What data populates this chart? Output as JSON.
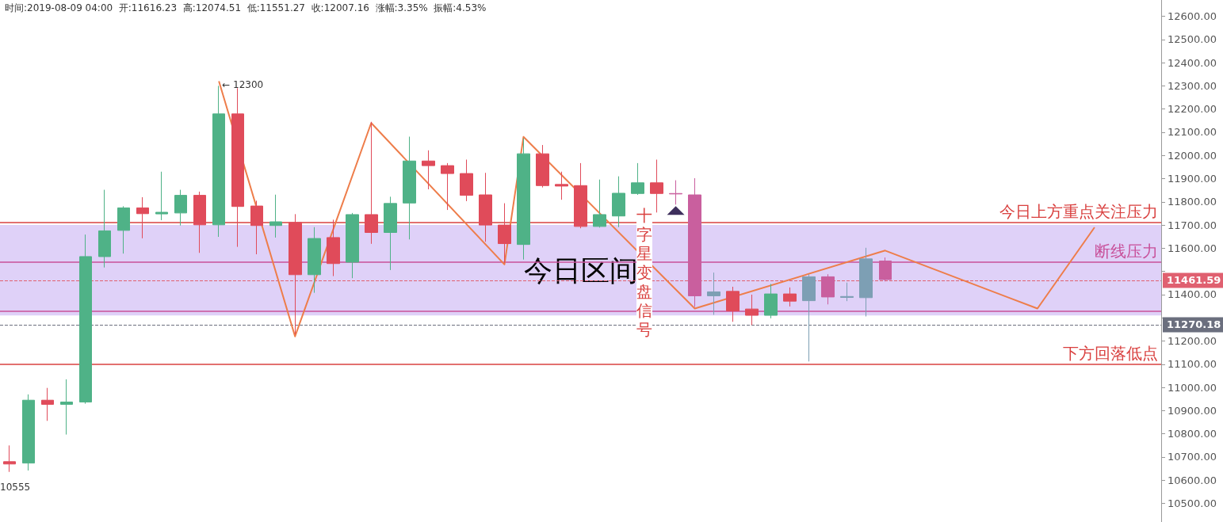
{
  "chart_data": {
    "type": "candlestick",
    "categories": [
      null,
      null,
      null,
      null,
      null,
      null,
      null,
      null,
      null,
      null,
      null,
      null,
      null,
      null,
      null,
      null,
      null,
      null,
      null,
      null,
      null,
      null,
      null,
      null,
      null,
      null,
      null,
      null,
      null,
      null,
      null,
      null,
      null,
      null,
      null,
      null,
      null,
      null,
      null,
      null,
      null,
      null,
      null,
      null,
      null,
      null,
      null,
      null,
      null,
      null,
      null,
      null,
      null,
      null,
      null,
      null,
      null,
      null,
      null,
      null,
      null
    ],
    "ohlc": [
      [
        10680,
        10750,
        10636,
        10670
      ],
      [
        10674,
        10970,
        10642,
        10945
      ],
      [
        10945,
        10998,
        10856,
        10927
      ],
      [
        10927,
        11035,
        10797,
        10937
      ],
      [
        10937,
        11659,
        10930,
        11564
      ],
      [
        11564,
        11852,
        11517,
        11675
      ],
      [
        11677,
        11781,
        11577,
        11774
      ],
      [
        11774,
        11820,
        11643,
        11749
      ],
      [
        11748,
        11930,
        11721,
        11755
      ],
      [
        11752,
        11852,
        11698,
        11828
      ],
      [
        11828,
        11844,
        11580,
        11701
      ],
      [
        11701,
        12300,
        11649,
        12179
      ],
      [
        12179,
        12290,
        11606,
        11780
      ],
      [
        11782,
        11805,
        11574,
        11698
      ],
      [
        11698,
        11831,
        11646,
        11714
      ],
      [
        11711,
        11747,
        11229,
        11486
      ],
      [
        11486,
        11691,
        11408,
        11642
      ],
      [
        11646,
        11723,
        11480,
        11534
      ],
      [
        11540,
        11752,
        11471,
        11745
      ],
      [
        11745,
        12145,
        11619,
        11668
      ],
      [
        11668,
        11822,
        11506,
        11793
      ],
      [
        11795,
        12081,
        11638,
        11976
      ],
      [
        11976,
        12022,
        11854,
        11956
      ],
      [
        11956,
        11967,
        11765,
        11922
      ],
      [
        11922,
        11982,
        11803,
        11828
      ],
      [
        11830,
        11925,
        11628,
        11700
      ],
      [
        11700,
        11794,
        11536,
        11620
      ],
      [
        11616.23,
        12074.51,
        11551.27,
        12007.16
      ],
      [
        12007,
        12045,
        11862,
        11870
      ],
      [
        11875,
        11930,
        11809,
        11868
      ],
      [
        11870,
        11967,
        11686,
        11694
      ],
      [
        11694,
        11896,
        11689,
        11745
      ],
      [
        11739,
        11910,
        11691,
        11837
      ],
      [
        11836,
        11967,
        11830,
        11882
      ],
      [
        11882,
        11982,
        11754,
        11836
      ],
      [
        11836,
        11893,
        11788,
        11834
      ],
      [
        11830,
        11902,
        11347,
        11395
      ],
      [
        11395,
        11495,
        11313,
        11412
      ],
      [
        11414,
        11434,
        11283,
        11330
      ],
      [
        11338,
        11400,
        11269,
        11311
      ],
      [
        11311,
        11446,
        11298,
        11403
      ],
      [
        11403,
        11431,
        11349,
        11372
      ],
      [
        11374,
        11488,
        11112,
        11477
      ],
      [
        11477,
        11488,
        11358,
        11390
      ],
      [
        11388,
        11452,
        11372,
        11392
      ],
      [
        11387,
        11602,
        11306,
        11554
      ],
      [
        11545,
        11560,
        11457,
        11465
      ],
      null,
      null,
      null,
      null,
      null,
      null,
      null,
      null,
      null,
      null,
      null,
      null,
      null,
      null
    ],
    "colors": [
      "#e04b5a",
      "#4fb287",
      "#e04b5a",
      "#4fb287",
      "#4fb287",
      "#4fb287",
      "#4fb287",
      "#e04b5a",
      "#4fb287",
      "#4fb287",
      "#e04b5a",
      "#4fb287",
      "#e04b5a",
      "#e04b5a",
      "#4fb287",
      "#e04b5a",
      "#4fb287",
      "#e04b5a",
      "#4fb287",
      "#e04b5a",
      "#4fb287",
      "#4fb287",
      "#e04b5a",
      "#e04b5a",
      "#e04b5a",
      "#e04b5a",
      "#e04b5a",
      "#4fb287",
      "#e04b5a",
      "#e04b5a",
      "#e04b5a",
      "#4fb287",
      "#4fb287",
      "#4fb287",
      "#e04b5a",
      "#c95f9e",
      "#c95f9e",
      "#7d9fb4",
      "#e04b5a",
      "#e04b5a",
      "#4fb287",
      "#e04b5a",
      "#7d9fb4",
      "#c95f9e",
      "#7d9fb4",
      "#7d9fb4",
      "#c95f9e",
      null,
      null,
      null,
      null,
      null,
      null,
      null,
      null,
      null,
      null,
      null,
      null,
      null,
      null
    ],
    "series": [
      {
        "type": "line",
        "color": "#ee7d4a",
        "values": [
          null,
          null,
          null,
          null,
          null,
          null,
          null,
          null,
          null,
          null,
          null,
          12320,
          null,
          null,
          null,
          11220,
          null,
          null,
          null,
          12140,
          null,
          null,
          null,
          null,
          null,
          null,
          11530,
          12080,
          null,
          null,
          null,
          null,
          null,
          null,
          null,
          null,
          11340,
          null,
          null,
          null,
          null,
          null,
          null,
          null,
          null,
          null,
          11590,
          null,
          null,
          null,
          null,
          null,
          null,
          null,
          11340,
          null,
          null,
          11690,
          null,
          null,
          null
        ]
      }
    ],
    "ylim": [
      10420,
      12670
    ],
    "yticks": [
      {
        "value": 10500,
        "label": "10500.00"
      },
      {
        "value": 10600,
        "label": "10600.00"
      },
      {
        "value": 10700,
        "label": "10700.00"
      },
      {
        "value": 10800,
        "label": "10800.00"
      },
      {
        "value": 10900,
        "label": "10900.00"
      },
      {
        "value": 11000,
        "label": "11000.00"
      },
      {
        "value": 11100,
        "label": "11100.00"
      },
      {
        "value": 11200,
        "label": "11200.00"
      },
      {
        "value": 11300,
        "label": null
      },
      {
        "value": 11400,
        "label": "11400.00"
      },
      {
        "value": 11500,
        "label": null
      },
      {
        "value": 11600,
        "label": "11600.00"
      },
      {
        "value": 11700,
        "label": "11700.00"
      },
      {
        "value": 11800,
        "label": "11800.00"
      },
      {
        "value": 11900,
        "label": "11900.00"
      },
      {
        "value": 12000,
        "label": "12000.00"
      },
      {
        "value": 12100,
        "label": "12100.00"
      },
      {
        "value": 12200,
        "label": "12200.00"
      },
      {
        "value": 12300,
        "label": "12300.00"
      },
      {
        "value": 12400,
        "label": "12400.00"
      },
      {
        "value": 12500,
        "label": "12500.00"
      },
      {
        "value": 12600,
        "label": "12600.00"
      }
    ],
    "ref_lines": [
      {
        "axis": "y",
        "value": 11461.59,
        "label": "11461.59",
        "color": "#e06070",
        "line_style": "dashed"
      },
      {
        "axis": "y",
        "value": 11270.18,
        "label": "11270.18",
        "color": "#6b6f7e",
        "line_style": "dashed"
      },
      {
        "axis": "y",
        "value": 11710,
        "label": "今日上方重点关注压力",
        "color": "#d9403f",
        "line_style": "solid"
      },
      {
        "axis": "y",
        "value": 11540,
        "label": "断线压力",
        "color": "#c8509a",
        "line_style": "solid"
      },
      {
        "axis": "y",
        "value": 11330,
        "label": null,
        "color": "#c8509a",
        "line_style": "solid"
      },
      {
        "axis": "y",
        "value": 11100,
        "label": "下方回落低点",
        "color": "#d9403f",
        "line_style": "solid"
      }
    ],
    "bands": [
      {
        "axis": "y",
        "from": 11310,
        "to": 11700,
        "label": "今日区间",
        "color": "#c9b3f3"
      }
    ],
    "annotations": [
      "时间:2019-08-09 04:00  开:11616.23  高:12074.51  低:11551.27  收:12007.16  涨幅:3.35%  振幅:4.53%",
      "← 12300",
      "10555",
      "十字星变盘信号"
    ],
    "grid": false,
    "tick_labels": "y",
    "marker": "none"
  }
}
